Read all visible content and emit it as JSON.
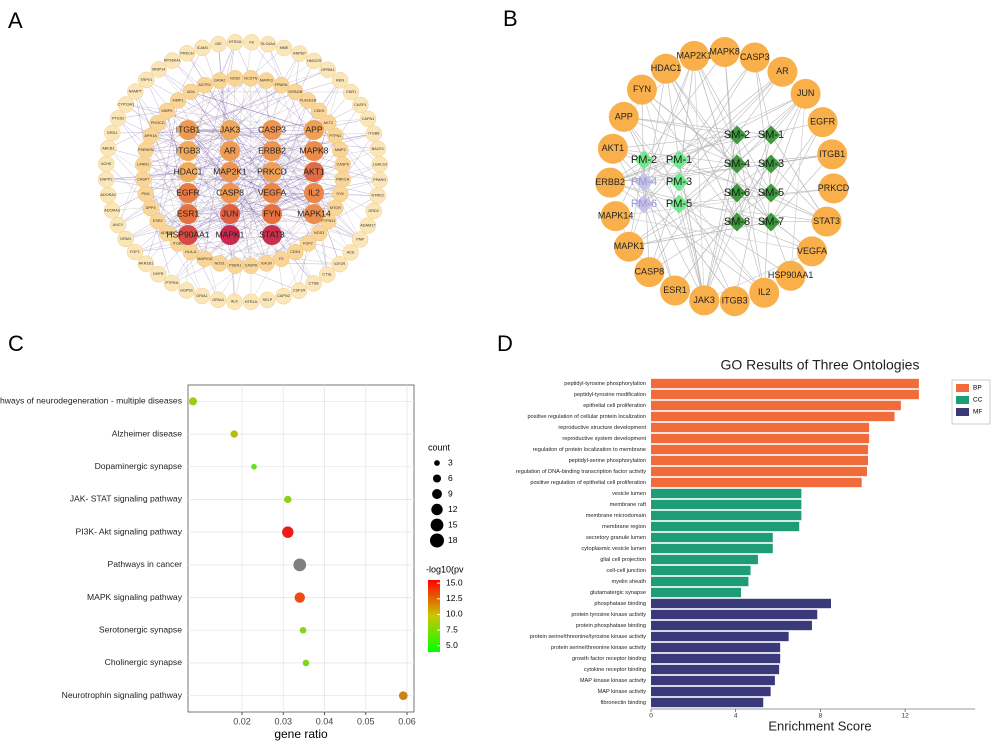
{
  "panel_labels": [
    "A",
    "B",
    "C",
    "D"
  ],
  "network_a": {
    "inner_nodes": [
      {
        "label": "ITGB1",
        "color": "#ef9a52"
      },
      {
        "label": "JAK3",
        "color": "#f2a85a"
      },
      {
        "label": "CASP3",
        "color": "#ee9550"
      },
      {
        "label": "APP",
        "color": "#f0a055"
      },
      {
        "label": "ITGB3",
        "color": "#f2aa5c"
      },
      {
        "label": "AR",
        "color": "#ef9c52"
      },
      {
        "label": "ERBB2",
        "color": "#ee9550"
      },
      {
        "label": "MAPK8",
        "color": "#ec8c4c"
      },
      {
        "label": "HDAC1",
        "color": "#f2ac5d"
      },
      {
        "label": "MAP2K1",
        "color": "#ee9550"
      },
      {
        "label": "PRKCD",
        "color": "#f0a055"
      },
      {
        "label": "AKT1",
        "color": "#e06b44"
      },
      {
        "label": "EGFR",
        "color": "#e87c45"
      },
      {
        "label": "CASP8",
        "color": "#ee9550"
      },
      {
        "label": "VEGFA",
        "color": "#eb8748"
      },
      {
        "label": "IL2",
        "color": "#eb8748"
      },
      {
        "label": "ESR1",
        "color": "#e6733f"
      },
      {
        "label": "JUN",
        "color": "#e0603f"
      },
      {
        "label": "FYN",
        "color": "#e6733f"
      },
      {
        "label": "MAPK14",
        "color": "#ec8c4c"
      },
      {
        "label": "HSP90AA1",
        "color": "#d84a46"
      },
      {
        "label": "MAPK1",
        "color": "#c72a4c"
      },
      {
        "label": "STAT3",
        "color": "#c8304c"
      }
    ],
    "middle_nodes": [
      "ADA",
      "AGTR1",
      "GRIA2",
      "NOS2",
      "NCSTN",
      "MAPK3",
      "PPARA",
      "GRIN2B",
      "PLA2G1B",
      "CDK5",
      "AKT2",
      "PTPN1",
      "MMP2",
      "CASP9",
      "PRKCA",
      "SYK",
      "MTOR",
      "PTPN11",
      "NOS3",
      "FGF2",
      "CDK4",
      "F2",
      "IGF1R",
      "CASP6",
      "PSEN1",
      "NOS1",
      "MAPK10",
      "HLA-A",
      "ITGB5",
      "ADRB2",
      "ESR2",
      "DPP4",
      "PIN1",
      "CASP7",
      "LPAR1",
      "PSENEN",
      "APH1A",
      "PIK3CD",
      "MMP9",
      "MMP1"
    ],
    "outer_nodes": [
      "ICAM1",
      "IDE",
      "HTR2A",
      "F8",
      "SLC6A4",
      "MME",
      "ANPEP",
      "HMGCR",
      "OPRM1",
      "REN",
      "CNR1",
      "CASP1",
      "CAPN1",
      "ITGB8",
      "BACE1",
      "LGALS3",
      "PPARG",
      "NTRK2",
      "DRD2",
      "ADAM17",
      "PNP",
      "ACE",
      "IGF2R",
      "CTSL",
      "CTSB",
      "CSF1R",
      "CAPN2",
      "SELP",
      "HTR1A",
      "ALK",
      "GRIA4",
      "GRIA1",
      "GGPS1",
      "PTPRA",
      "DHFR",
      "AKR1B1",
      "FGF1",
      "GRM1",
      "AHCY",
      "ADORA3",
      "ADORA1",
      "ENPP2",
      "ACHE",
      "ABCB1",
      "DRD1",
      "PTGS2",
      "CYP19A1",
      "NAMPT",
      "TRPV1",
      "MMP14",
      "RPS6KA1",
      "PRKCH"
    ]
  },
  "network_b": {
    "targets": [
      "MAP2K1",
      "MAPK8",
      "CASP3",
      "AR",
      "JUN",
      "EGFR",
      "ITGB1",
      "PRKCD",
      "STAT3",
      "VEGFA",
      "HSP90AA1",
      "IL2",
      "ITGB3",
      "JAK3",
      "ESR1",
      "CASP8",
      "MAPK1",
      "MAPK14",
      "ERBB2",
      "AKT1",
      "APP",
      "FYN",
      "HDAC1"
    ],
    "target_color": "#f9b04a",
    "compounds": [
      {
        "label": "PM-1",
        "color": "#6ee88a"
      },
      {
        "label": "PM-2",
        "color": "#6ee88a"
      },
      {
        "label": "PM-3",
        "color": "#6ee88a"
      },
      {
        "label": "PM-4",
        "color": "#c6c2ec"
      },
      {
        "label": "PM-5",
        "color": "#6ee88a"
      },
      {
        "label": "PM-6",
        "color": "#c6c2ec"
      },
      {
        "label": "SM-1",
        "color": "#3d9a3d"
      },
      {
        "label": "SM-2",
        "color": "#3d9a3d"
      },
      {
        "label": "SM-3",
        "color": "#3d9a3d"
      },
      {
        "label": "SM-4",
        "color": "#3d9a3d"
      },
      {
        "label": "SM-5",
        "color": "#3d9a3d"
      },
      {
        "label": "SM-6",
        "color": "#3d9a3d"
      },
      {
        "label": "SM-7",
        "color": "#3d9a3d"
      },
      {
        "label": "SM-8",
        "color": "#3d9a3d"
      }
    ]
  },
  "chart_data": [
    {
      "type": "scatter",
      "x_label": "gene ratio",
      "categories": [
        "Pathways of neurodegeneration - multiple diseases",
        "Alzheimer disease",
        "Dopaminergic synapse",
        "JAK- STAT signaling pathway",
        "PI3K- Akt signaling pathway",
        "Pathways in cancer",
        "MAPK signaling pathway",
        "Serotonergic synapse",
        "Cholinergic synapse",
        "Neurotrophin signaling pathway"
      ],
      "x": [
        0.0081,
        0.0181,
        0.0229,
        0.0311,
        0.0311,
        0.034,
        0.034,
        0.0348,
        0.0355,
        0.0591
      ],
      "sizes": [
        6,
        5,
        3,
        5,
        12,
        15,
        10,
        4,
        4,
        7
      ],
      "color_values": [
        7.5,
        8,
        5.5,
        7,
        15,
        null,
        13.5,
        6,
        6,
        11
      ],
      "colors": [
        "#9acd16",
        "#b3bc10",
        "#66e024",
        "#8cd018",
        "#ee1c14",
        "#7f7f7f",
        "#ef4a10",
        "#80d81c",
        "#80d81c",
        "#c88414"
      ],
      "xlim": [
        0.0069,
        0.0617
      ],
      "xticks": [
        0.02,
        0.03,
        0.04,
        0.05,
        0.06
      ],
      "grid": true,
      "size_legend": {
        "title": "count",
        "values": [
          3,
          6,
          9,
          12,
          15,
          18
        ]
      },
      "colorbar": {
        "title": "-log10(pv",
        "lim": [
          4,
          15.5
        ],
        "colors": [
          "#00ff00",
          "#c8c800",
          "#ff0000"
        ],
        "ticks": [
          {
            "value": 5,
            "label": "5.0"
          },
          {
            "value": 7.5,
            "label": "7.5"
          },
          {
            "value": 10,
            "label": "10.0"
          },
          {
            "value": 12.5,
            "label": "12.5"
          },
          {
            "value": 15,
            "label": "15.0"
          }
        ]
      }
    },
    {
      "type": "hbar_groups",
      "title": "GO Results of Three Ontologies",
      "x_label": "Enrichment Score",
      "xlim": [
        0,
        15.3
      ],
      "xticks": [
        0,
        4,
        8,
        12
      ],
      "groups": [
        {
          "name": "BP",
          "color": "#f26b3a",
          "categories": [
            "peptidyl-tyrosine phosphorylation",
            "peptidyl-tyrosine modification",
            "epithelial cell proliferation",
            "positive regulation of cellular protein localization",
            "reproductive structure development",
            "reproductive system development",
            "regulation of protein localization to membrane",
            "peptidyl-serine phosphorylation",
            "regulation of DNA-binding transcription factor activity",
            "positive regulation of epithelial cell proliferation"
          ],
          "values": [
            12.65,
            12.65,
            11.8,
            11.5,
            10.3,
            10.3,
            10.25,
            10.25,
            10.2,
            9.95
          ]
        },
        {
          "name": "CC",
          "color": "#1e9c76",
          "categories": [
            "vesicle lumen",
            "membrane raft",
            "membrane microdomain",
            "membrane region",
            "secretory granule lumen",
            "cytoplasmic vesicle lumen",
            "glial cell projection",
            "cell-cell junction",
            "myelin sheath",
            "glutamatergic synapse"
          ],
          "values": [
            7.1,
            7.1,
            7.1,
            7.0,
            5.75,
            5.75,
            5.05,
            4.7,
            4.6,
            4.25
          ]
        },
        {
          "name": "MF",
          "color": "#3a3a7a",
          "categories": [
            "phosphatase binding",
            "protein tyrosine kinase activity",
            "protein phosphatase binding",
            "protein serine/threonine/tyrosine kinase activity",
            "protein serine/threonine kinase activity",
            "growth factor receptor binding",
            "cytokine receptor binding",
            "MAP kinase kinase activity",
            "MAP kinase activity",
            "fibronectin binding"
          ],
          "values": [
            8.5,
            7.85,
            7.6,
            6.5,
            6.1,
            6.1,
            6.05,
            5.85,
            5.65,
            5.3
          ]
        }
      ]
    }
  ]
}
